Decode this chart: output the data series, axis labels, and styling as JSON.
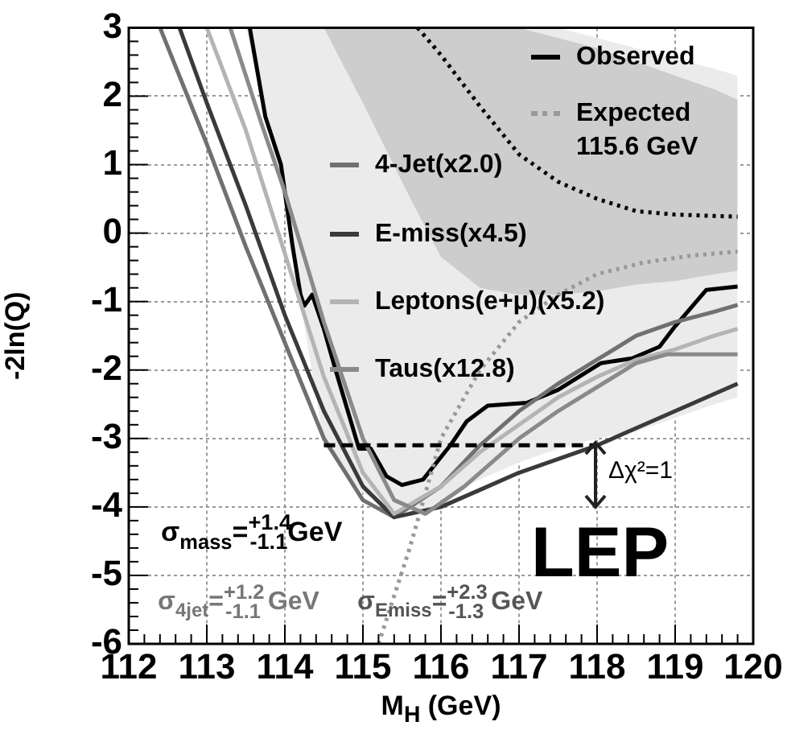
{
  "chart_data": {
    "type": "line",
    "xlabel": "M$_{H}$ (GeV)",
    "ylabel": "-2ln(Q)",
    "xlim": [
      112,
      120
    ],
    "xticks": [
      112,
      113,
      114,
      115,
      116,
      117,
      118,
      119,
      120
    ],
    "ylim": [
      -6,
      3
    ],
    "yticks": [
      -6,
      -5,
      -4,
      -3,
      -2,
      -1,
      0,
      1,
      2,
      3
    ],
    "grid": true,
    "legend": "top right",
    "series": [
      {
        "name": "Observed",
        "color": "#000000",
        "x": [
          113.55,
          113.75,
          113.95,
          114.1,
          114.2,
          114.25,
          114.35,
          114.5,
          114.65,
          114.95,
          115.1,
          115.3,
          115.5,
          115.77,
          116.12,
          116.33,
          116.6,
          117.1,
          117.5,
          118.05,
          118.45,
          118.8,
          119.0,
          119.4,
          119.8
        ],
        "values": [
          3,
          1.7,
          1.0,
          -0.2,
          -0.9,
          -1.06,
          -0.9,
          -1.4,
          -2.0,
          -3.15,
          -3.15,
          -3.55,
          -3.68,
          -3.6,
          -3.1,
          -2.75,
          -2.52,
          -2.48,
          -2.29,
          -1.9,
          -1.83,
          -1.66,
          -1.36,
          -0.83,
          -0.78
        ]
      },
      {
        "name": "Expected 115.6 GeV",
        "color": "#999999",
        "line_style": "dotted",
        "x": [
          115.2,
          115.6,
          116,
          116.5,
          117,
          117.5,
          118,
          118.6,
          119.2,
          119.8
        ],
        "values": [
          -6,
          -4.6,
          -3.0,
          -2.0,
          -1.3,
          -0.9,
          -0.6,
          -0.43,
          -0.33,
          -0.27
        ]
      },
      {
        "name": "4-Jet(x2.0)",
        "color": "#707070",
        "x": [
          112.4,
          113,
          113.5,
          114,
          114.5,
          115,
          115.4,
          116,
          116.5,
          117,
          117.5,
          118,
          118.5,
          119,
          119.5,
          119.8
        ],
        "values": [
          3,
          1.3,
          -0.2,
          -1.6,
          -3.0,
          -3.9,
          -4.15,
          -3.7,
          -3.1,
          -2.6,
          -2.2,
          -1.85,
          -1.5,
          -1.3,
          -1.15,
          -1.05
        ]
      },
      {
        "name": "E-miss(x4.5)",
        "color": "#3a3a3a",
        "x": [
          112.65,
          113,
          113.5,
          114,
          114.5,
          115,
          115.4,
          116,
          116.5,
          117,
          117.5,
          118,
          118.5,
          119,
          119.5,
          119.8
        ],
        "values": [
          3,
          1.9,
          0.4,
          -1.2,
          -2.6,
          -3.7,
          -4.15,
          -4.0,
          -3.75,
          -3.5,
          -3.3,
          -3.1,
          -2.85,
          -2.6,
          -2.35,
          -2.2
        ]
      },
      {
        "name": "Leptons(e+μ)(x5.2)",
        "color": "#b4b4b4",
        "x": [
          113.0,
          113.5,
          114,
          114.5,
          115,
          115.4,
          116,
          116.5,
          117,
          117.5,
          118,
          118.5,
          119,
          119.5,
          119.8
        ],
        "values": [
          3,
          1.5,
          -0.3,
          -2.1,
          -3.5,
          -4.1,
          -3.7,
          -3.2,
          -2.8,
          -2.4,
          -2.1,
          -1.85,
          -1.7,
          -1.5,
          -1.4
        ]
      },
      {
        "name": "Taus(x12.8)",
        "color": "#8a8a8a",
        "x": [
          113.3,
          113.7,
          114,
          114.5,
          115,
          115.4,
          115.8,
          116.3,
          117,
          117.5,
          118,
          118.5,
          118.9,
          119.8
        ],
        "values": [
          3,
          1.6,
          0.6,
          -1.3,
          -3.0,
          -3.9,
          -4.1,
          -3.7,
          -3.0,
          -2.6,
          -2.25,
          -1.9,
          -1.77,
          -1.77
        ]
      },
      {
        "color": "#ebebeb",
        "type": "area",
        "x": [
          113.5,
          114,
          114.5,
          115,
          115.5,
          115.7,
          116,
          116.5,
          117,
          117.5,
          118,
          118.5,
          119,
          119.5,
          119.8
        ],
        "values": [
          null,
          null,
          null,
          null,
          null,
          null,
          null,
          null,
          null,
          null,
          null,
          null,
          null,
          null,
          null
        ],
        "lower": [
          3,
          0.4,
          -3.1,
          -3.8,
          -4.1,
          -4.1,
          -3.9,
          -3.6,
          -3.35,
          -3.15,
          -3.0,
          -2.9,
          -2.7,
          -2.5,
          -2.4
        ],
        "upper": [
          3,
          3,
          3,
          3,
          3,
          3,
          3,
          3,
          3,
          3,
          2.85,
          2.7,
          2.55,
          2.4,
          2.3
        ]
      },
      {
        "color": "#cdcdcd",
        "type": "area",
        "x": [
          114.5,
          115,
          115.5,
          115.7,
          116,
          116.5,
          117,
          117.5,
          118,
          118.5,
          119,
          119.5,
          119.8
        ],
        "values": [
          null,
          null,
          null,
          null,
          null,
          null,
          null,
          null,
          null,
          null,
          null,
          null,
          null
        ],
        "lower": [
          3,
          1.9,
          0.75,
          0.3,
          -0.35,
          -0.8,
          -0.9,
          -0.9,
          -0.85,
          -0.75,
          -0.7,
          -0.6,
          -0.55
        ],
        "upper": [
          3,
          3,
          3,
          3,
          3,
          3,
          3,
          2.85,
          2.7,
          2.5,
          2.3,
          2.1,
          1.95
        ]
      },
      {
        "color": "#000000",
        "line_style": "dotted",
        "x": [
          115.7,
          116,
          116.5,
          117,
          117.5,
          118,
          118.5,
          119,
          119.5,
          119.8
        ],
        "values": [
          3,
          2.6,
          1.85,
          1.15,
          0.75,
          0.5,
          0.32,
          0.27,
          0.25,
          0.24
        ]
      },
      {
        "color": "#000000",
        "line_style": "dashed",
        "x": [
          114.5,
          118
        ],
        "values": [
          -3.1,
          -3.1
        ]
      }
    ],
    "annotations": [
      "σ$_{mass}$=$^{+1.4}$$_{-1.1}$GeV",
      "σ$_{4jet}$=$^{+1.2}$$_{-1.1}$ GeV",
      "σ$_{Emiss}$=$^{+2.3}$$_{-1.3}$ GeV",
      "Δχ²=1",
      "LEP"
    ]
  }
}
